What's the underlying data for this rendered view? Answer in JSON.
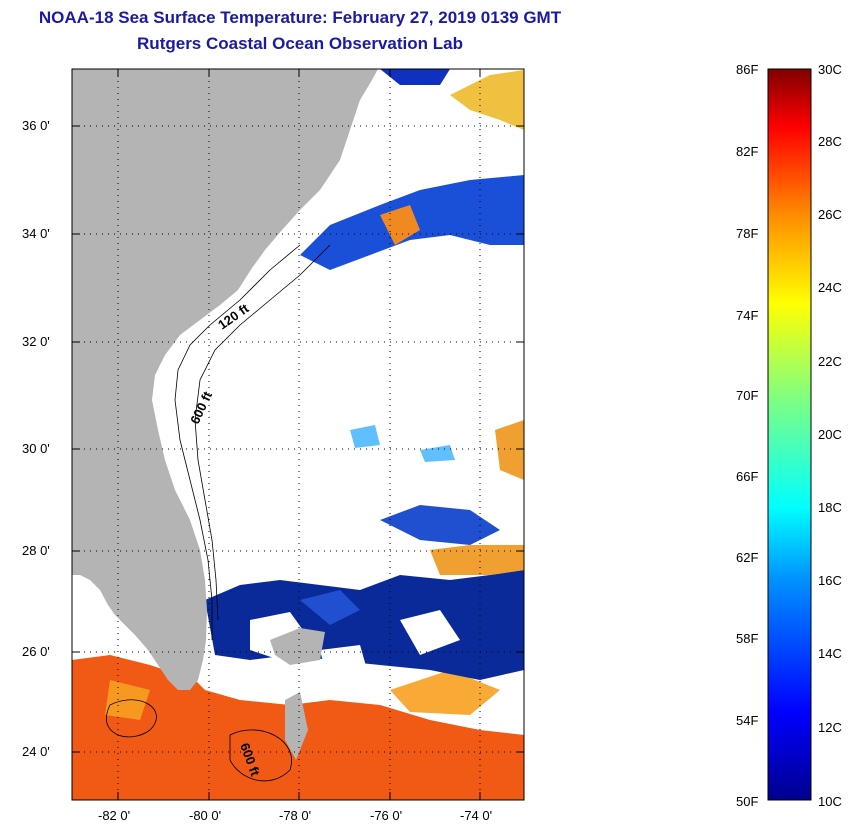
{
  "header": {
    "title": "NOAA-18 Sea Surface Temperature:  February 27, 2019 0139 GMT",
    "subtitle": "Rutgers Coastal Ocean Observation Lab"
  },
  "axes": {
    "lat_labels": [
      "36 0'",
      "34 0'",
      "32 0'",
      "30 0'",
      "28 0'",
      "26 0'",
      "24 0'"
    ],
    "lon_labels": [
      "-82 0'",
      "-80 0'",
      "-78 0'",
      "-76 0'",
      "-74 0'"
    ]
  },
  "contours": {
    "c120": "120 ft",
    "c600a": "600 ft",
    "c600b": "600 ft"
  },
  "colorbar": {
    "f_labels": [
      "86F",
      "82F",
      "78F",
      "74F",
      "70F",
      "66F",
      "62F",
      "58F",
      "54F",
      "50F"
    ],
    "c_labels": [
      "30C",
      "28C",
      "26C",
      "24C",
      "22C",
      "20C",
      "18C",
      "16C",
      "14C",
      "12C",
      "10C"
    ]
  },
  "colors": {
    "land": "#b4b4b4",
    "cloud": "#ffffff",
    "title": "#1a1aa6",
    "warm": "#f05a14",
    "cold": "#0a2a9a"
  }
}
